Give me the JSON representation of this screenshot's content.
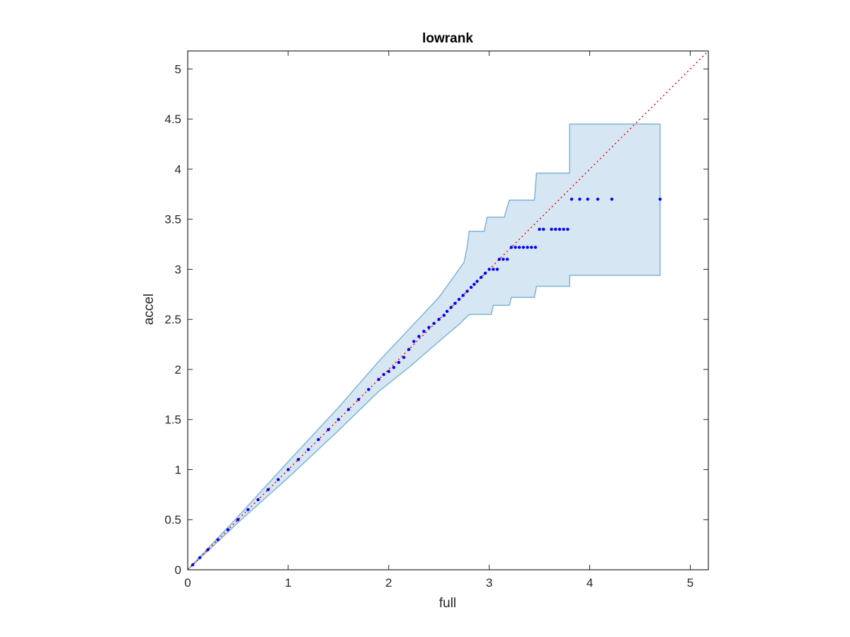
{
  "chart_data": {
    "type": "scatter",
    "title": "lowrank",
    "xlabel": "full",
    "ylabel": "accel",
    "xlim": [
      0,
      5.18
    ],
    "ylim": [
      0,
      5.18
    ],
    "x_ticks": [
      0,
      1,
      2,
      3,
      4,
      5
    ],
    "x_tick_labels": [
      "0",
      "1",
      "2",
      "3",
      "4",
      "5"
    ],
    "y_ticks": [
      0,
      0.5,
      1,
      1.5,
      2,
      2.5,
      3,
      3.5,
      4,
      4.5,
      5
    ],
    "y_tick_labels": [
      "0",
      "0.5",
      "1",
      "1.5",
      "2",
      "2.5",
      "3",
      "3.5",
      "4",
      "4.5",
      "5"
    ],
    "grid": false,
    "box": true,
    "colors": {
      "points": "#0000ff",
      "reference_line": "#ff0000",
      "band_fill": "#d6e7f3",
      "band_edge": "#7fb4d8",
      "axes": "#262626"
    },
    "reference_line": {
      "style": "dotted",
      "from": [
        0,
        0
      ],
      "to": [
        5.18,
        5.18
      ]
    },
    "confidence_band": {
      "upper": [
        [
          0,
          0
        ],
        [
          0.5,
          0.53
        ],
        [
          1,
          1.08
        ],
        [
          1.5,
          1.62
        ],
        [
          1.9,
          2.08
        ],
        [
          2.2,
          2.4
        ],
        [
          2.5,
          2.72
        ],
        [
          2.75,
          3.07
        ],
        [
          2.78,
          3.22
        ],
        [
          2.8,
          3.38
        ],
        [
          2.95,
          3.38
        ],
        [
          2.98,
          3.52
        ],
        [
          3.15,
          3.52
        ],
        [
          3.17,
          3.59
        ],
        [
          3.2,
          3.69
        ],
        [
          3.45,
          3.69
        ],
        [
          3.47,
          3.96
        ],
        [
          3.8,
          3.96
        ],
        [
          3.8,
          4.45
        ],
        [
          4.7,
          4.45
        ]
      ],
      "lower": [
        [
          0,
          0
        ],
        [
          0.5,
          0.47
        ],
        [
          1,
          0.92
        ],
        [
          1.5,
          1.39
        ],
        [
          1.9,
          1.78
        ],
        [
          2.2,
          2.02
        ],
        [
          2.5,
          2.28
        ],
        [
          2.7,
          2.45
        ],
        [
          2.8,
          2.55
        ],
        [
          3.02,
          2.55
        ],
        [
          3.04,
          2.64
        ],
        [
          3.2,
          2.64
        ],
        [
          3.22,
          2.72
        ],
        [
          3.45,
          2.72
        ],
        [
          3.47,
          2.83
        ],
        [
          3.8,
          2.83
        ],
        [
          3.8,
          2.94
        ],
        [
          4.7,
          2.94
        ]
      ]
    },
    "series": [
      {
        "x": [
          0.05,
          0.12,
          0.2,
          0.3,
          0.4,
          0.5,
          0.6,
          0.7,
          0.8,
          0.9,
          1.0,
          1.1,
          1.2,
          1.3,
          1.4,
          1.5,
          1.6,
          1.7,
          1.8,
          1.9,
          1.95,
          2.0,
          2.05,
          2.1,
          2.15,
          2.2,
          2.25,
          2.3,
          2.35,
          2.4,
          2.45,
          2.5,
          2.55,
          2.58,
          2.62,
          2.66,
          2.7,
          2.74,
          2.78,
          2.82,
          2.85,
          2.88,
          2.92,
          2.96,
          3.0,
          3.04,
          3.08,
          3.1,
          3.14,
          3.18,
          3.22,
          3.26,
          3.3,
          3.34,
          3.38,
          3.42,
          3.46,
          3.5,
          3.54,
          3.62,
          3.66,
          3.7,
          3.74,
          3.78,
          3.82,
          3.9,
          3.98,
          4.08,
          4.22,
          4.7
        ],
        "y": [
          0.05,
          0.12,
          0.2,
          0.3,
          0.4,
          0.5,
          0.6,
          0.7,
          0.8,
          0.9,
          1.0,
          1.1,
          1.2,
          1.3,
          1.4,
          1.5,
          1.6,
          1.7,
          1.8,
          1.9,
          1.95,
          1.98,
          2.02,
          2.07,
          2.12,
          2.2,
          2.28,
          2.33,
          2.38,
          2.42,
          2.46,
          2.5,
          2.54,
          2.58,
          2.62,
          2.66,
          2.7,
          2.74,
          2.78,
          2.82,
          2.85,
          2.88,
          2.92,
          2.96,
          3.0,
          3.0,
          3.0,
          3.1,
          3.1,
          3.1,
          3.22,
          3.22,
          3.22,
          3.22,
          3.22,
          3.22,
          3.22,
          3.4,
          3.4,
          3.4,
          3.4,
          3.4,
          3.4,
          3.4,
          3.7,
          3.7,
          3.7,
          3.7,
          3.7,
          3.7
        ]
      }
    ]
  }
}
